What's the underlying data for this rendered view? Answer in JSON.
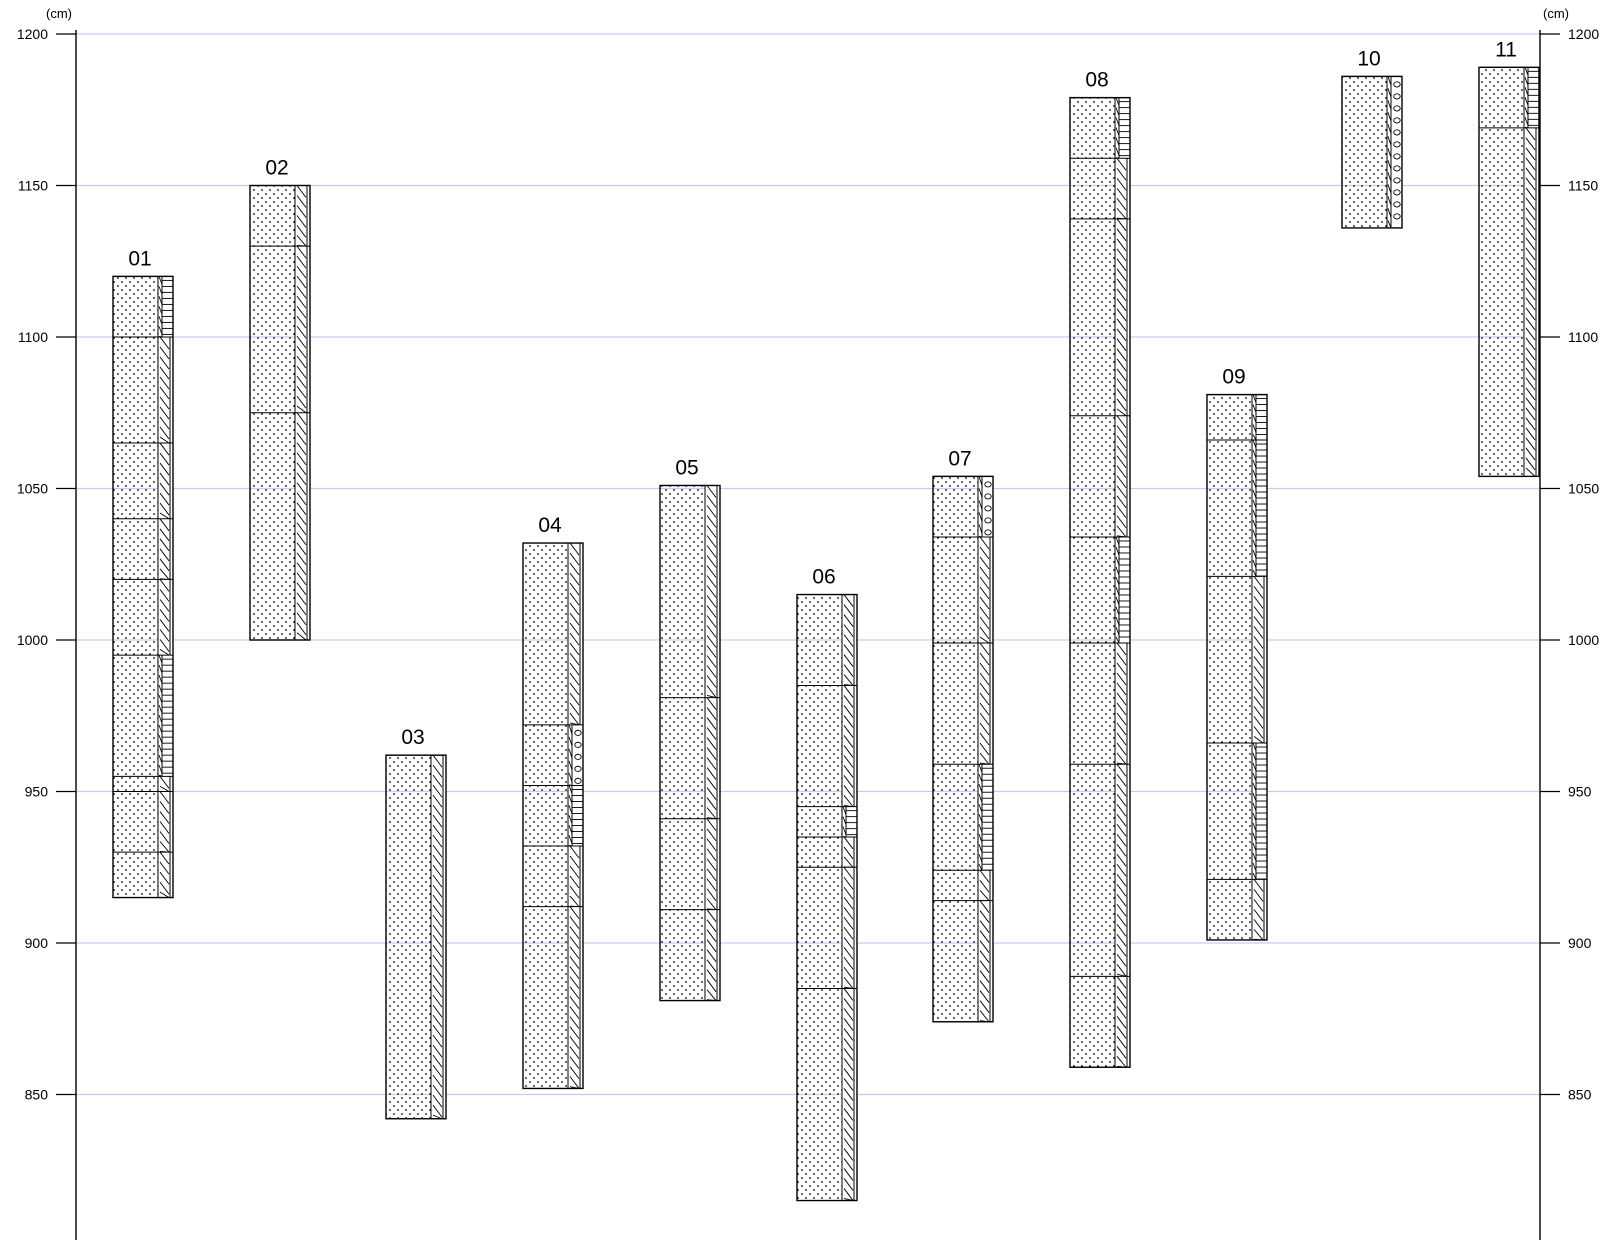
{
  "chart_data": {
    "type": "stratigraphic-columns",
    "unit": "(cm)",
    "ylim": [
      800,
      1200
    ],
    "yticks": [
      1200,
      1150,
      1100,
      1050,
      1000,
      950,
      900,
      850
    ],
    "grid": true,
    "grid_color": "#c9c9f2",
    "line_color": "#000000",
    "columns": [
      {
        "id": "01",
        "top": 1120,
        "bottom": 915,
        "layers": [
          {
            "top": 1120,
            "bottom": 1100,
            "sym": "stripe"
          },
          {
            "top": 1100,
            "bottom": 1065,
            "sym": "hatch"
          },
          {
            "top": 1065,
            "bottom": 1040,
            "sym": "hatch"
          },
          {
            "top": 1040,
            "bottom": 1020,
            "sym": "hatch"
          },
          {
            "top": 1020,
            "bottom": 995,
            "sym": "hatch"
          },
          {
            "top": 995,
            "bottom": 955,
            "sym": "stripe"
          },
          {
            "top": 955,
            "bottom": 950,
            "sym": "hatch"
          },
          {
            "top": 950,
            "bottom": 930,
            "sym": "hatch"
          },
          {
            "top": 930,
            "bottom": 915,
            "sym": "hatch"
          }
        ]
      },
      {
        "id": "02",
        "top": 1150,
        "bottom": 1000,
        "layers": [
          {
            "top": 1150,
            "bottom": 1130,
            "sym": "hatch"
          },
          {
            "top": 1130,
            "bottom": 1075,
            "sym": "hatch"
          },
          {
            "top": 1075,
            "bottom": 1000,
            "sym": "hatch"
          }
        ]
      },
      {
        "id": "03",
        "top": 962,
        "bottom": 842,
        "layers": [
          {
            "top": 962,
            "bottom": 842,
            "sym": "hatch"
          }
        ]
      },
      {
        "id": "04",
        "top": 1032,
        "bottom": 852,
        "layers": [
          {
            "top": 1032,
            "bottom": 972,
            "sym": "hatch"
          },
          {
            "top": 972,
            "bottom": 952,
            "sym": "circle"
          },
          {
            "top": 952,
            "bottom": 932,
            "sym": "stripe"
          },
          {
            "top": 932,
            "bottom": 912,
            "sym": "hatch"
          },
          {
            "top": 912,
            "bottom": 852,
            "sym": "hatch"
          }
        ]
      },
      {
        "id": "05",
        "top": 1051,
        "bottom": 881,
        "layers": [
          {
            "top": 1051,
            "bottom": 981,
            "sym": "hatch"
          },
          {
            "top": 981,
            "bottom": 941,
            "sym": "hatch"
          },
          {
            "top": 941,
            "bottom": 911,
            "sym": "hatch"
          },
          {
            "top": 911,
            "bottom": 881,
            "sym": "hatch"
          }
        ]
      },
      {
        "id": "06",
        "top": 1015,
        "bottom": 815,
        "layers": [
          {
            "top": 1015,
            "bottom": 985,
            "sym": "hatch"
          },
          {
            "top": 985,
            "bottom": 945,
            "sym": "hatch"
          },
          {
            "top": 945,
            "bottom": 935,
            "sym": "stripe"
          },
          {
            "top": 935,
            "bottom": 925,
            "sym": "hatch"
          },
          {
            "top": 925,
            "bottom": 885,
            "sym": "hatch"
          },
          {
            "top": 885,
            "bottom": 815,
            "sym": "hatch"
          }
        ]
      },
      {
        "id": "07",
        "top": 1054,
        "bottom": 874,
        "layers": [
          {
            "top": 1054,
            "bottom": 1034,
            "sym": "circle"
          },
          {
            "top": 1034,
            "bottom": 999,
            "sym": "hatch"
          },
          {
            "top": 999,
            "bottom": 959,
            "sym": "hatch"
          },
          {
            "top": 959,
            "bottom": 924,
            "sym": "stripe"
          },
          {
            "top": 924,
            "bottom": 914,
            "sym": "hatch"
          },
          {
            "top": 914,
            "bottom": 874,
            "sym": "hatch"
          }
        ]
      },
      {
        "id": "08",
        "top": 1179,
        "bottom": 859,
        "layers": [
          {
            "top": 1179,
            "bottom": 1159,
            "sym": "stripe"
          },
          {
            "top": 1159,
            "bottom": 1139,
            "sym": "hatch"
          },
          {
            "top": 1139,
            "bottom": 1074,
            "sym": "hatch"
          },
          {
            "top": 1074,
            "bottom": 1034,
            "sym": "hatch"
          },
          {
            "top": 1034,
            "bottom": 999,
            "sym": "stripe"
          },
          {
            "top": 999,
            "bottom": 959,
            "sym": "hatch"
          },
          {
            "top": 959,
            "bottom": 889,
            "sym": "hatch"
          },
          {
            "top": 889,
            "bottom": 859,
            "sym": "hatch"
          }
        ]
      },
      {
        "id": "09",
        "top": 1081,
        "bottom": 901,
        "layers": [
          {
            "top": 1081,
            "bottom": 1066,
            "sym": "stripe"
          },
          {
            "top": 1066,
            "bottom": 1021,
            "sym": "stripe"
          },
          {
            "top": 1021,
            "bottom": 966,
            "sym": "hatch"
          },
          {
            "top": 966,
            "bottom": 921,
            "sym": "stripe"
          },
          {
            "top": 921,
            "bottom": 901,
            "sym": "hatch"
          }
        ]
      },
      {
        "id": "10",
        "top": 1186,
        "bottom": 1136,
        "layers": [
          {
            "top": 1186,
            "bottom": 1136,
            "sym": "circle"
          }
        ]
      },
      {
        "id": "11",
        "top": 1189,
        "bottom": 1054,
        "layers": [
          {
            "top": 1189,
            "bottom": 1169,
            "sym": "stripe"
          },
          {
            "top": 1169,
            "bottom": 1054,
            "sym": "hatch"
          }
        ]
      }
    ]
  }
}
